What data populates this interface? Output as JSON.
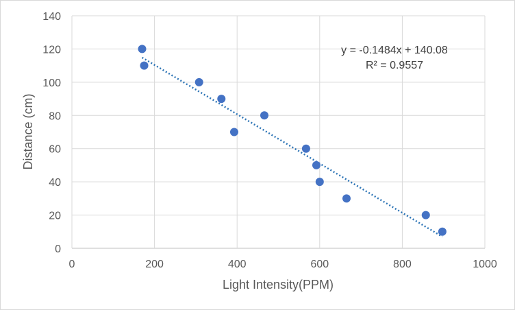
{
  "chart_data": {
    "type": "scatter",
    "xlabel": "Light Intensity(PPM)",
    "ylabel": "Distance (cm)",
    "xlim": [
      0,
      1000
    ],
    "ylim": [
      0,
      140
    ],
    "x_ticks": [
      "0",
      "200",
      "400",
      "600",
      "800",
      "1000"
    ],
    "y_ticks": [
      "0",
      "20",
      "40",
      "60",
      "80",
      "100",
      "120",
      "140"
    ],
    "grid": true,
    "marker_color": "#4472c4",
    "trendline_color": "#2e75b6",
    "series": [
      {
        "points": [
          {
            "x": 170,
            "y": 120
          },
          {
            "x": 175,
            "y": 110
          },
          {
            "x": 308,
            "y": 100
          },
          {
            "x": 362,
            "y": 90
          },
          {
            "x": 393,
            "y": 70
          },
          {
            "x": 466,
            "y": 80
          },
          {
            "x": 567,
            "y": 60
          },
          {
            "x": 592,
            "y": 50
          },
          {
            "x": 600,
            "y": 40
          },
          {
            "x": 665,
            "y": 30
          },
          {
            "x": 857,
            "y": 20
          },
          {
            "x": 897,
            "y": 10
          }
        ]
      }
    ],
    "trendline": {
      "type": "linear",
      "slope": -0.1484,
      "intercept": 140.08,
      "x_range": [
        170,
        897
      ],
      "equation": "y = -0.1484x + 140.08",
      "r_squared": "R² = 0.9557"
    }
  }
}
